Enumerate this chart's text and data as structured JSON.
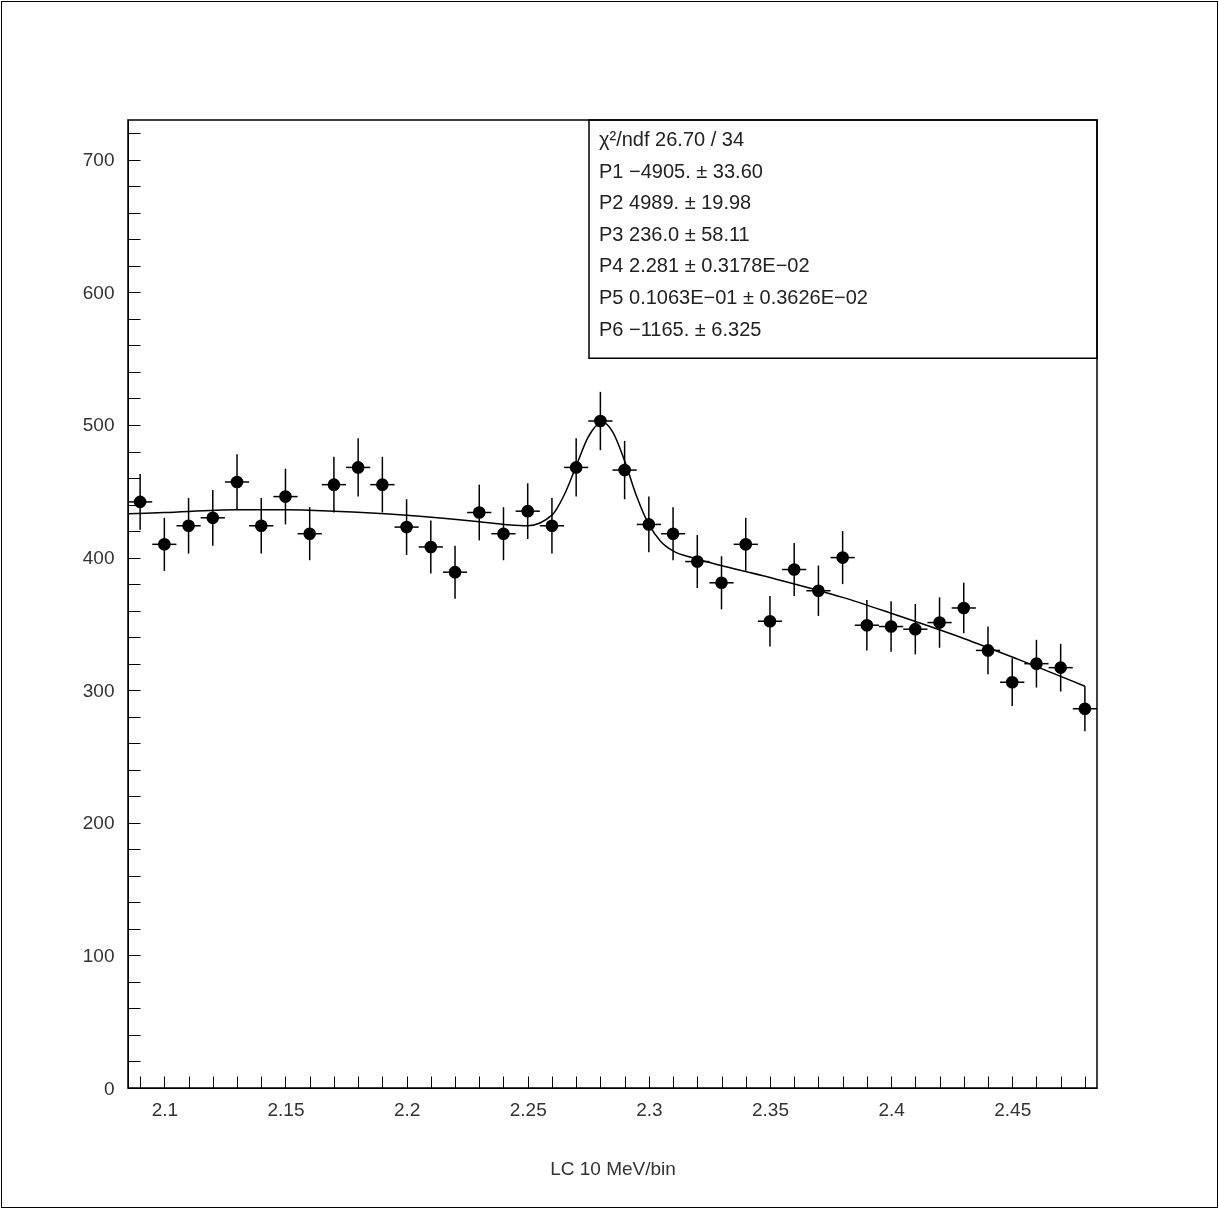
{
  "chart_data": {
    "type": "scatter",
    "xlabel": "LC 10 MeV/bin",
    "x": [
      2.09,
      2.1,
      2.11,
      2.12,
      2.13,
      2.14,
      2.15,
      2.16,
      2.17,
      2.18,
      2.19,
      2.2,
      2.21,
      2.22,
      2.23,
      2.24,
      2.25,
      2.26,
      2.27,
      2.28,
      2.29,
      2.3,
      2.31,
      2.32,
      2.33,
      2.34,
      2.35,
      2.36,
      2.37,
      2.38,
      2.39,
      2.4,
      2.41,
      2.42,
      2.43,
      2.44,
      2.45,
      2.46,
      2.47,
      2.48
    ],
    "series": [
      {
        "color": "#000000",
        "marker": "circle",
        "values": [
          442,
          410,
          424,
          430,
          457,
          424,
          446,
          418,
          455,
          468,
          455,
          423,
          408,
          389,
          434,
          418,
          435,
          424,
          468,
          503,
          466,
          425,
          418,
          397,
          381,
          410,
          352,
          391,
          375,
          400,
          349,
          348,
          346,
          351,
          362,
          330,
          306,
          320,
          317,
          286
        ],
        "errors": [
          21,
          20,
          21,
          21,
          21,
          21,
          21,
          20,
          21,
          22,
          21,
          21,
          20,
          20,
          21,
          20,
          21,
          21,
          22,
          22,
          22,
          21,
          20,
          20,
          20,
          20,
          19,
          20,
          19,
          20,
          19,
          19,
          19,
          19,
          19,
          18,
          18,
          18,
          18,
          17
        ],
        "xerrors": [
          0.005,
          0.005,
          0.005,
          0.005,
          0.005,
          0.005,
          0.005,
          0.005,
          0.005,
          0.005,
          0.005,
          0.005,
          0.005,
          0.005,
          0.005,
          0.005,
          0.005,
          0.005,
          0.005,
          0.005,
          0.005,
          0.005,
          0.005,
          0.005,
          0.005,
          0.005,
          0.005,
          0.005,
          0.005,
          0.005,
          0.005,
          0.005,
          0.005,
          0.005,
          0.005,
          0.005,
          0.005,
          0.005,
          0.005,
          0.005
        ]
      },
      {
        "type": "line",
        "color": "#000000",
        "marker": "none",
        "line_style": "solid",
        "x": [
          2.085,
          2.1,
          2.13,
          2.15,
          2.17,
          2.2,
          2.23,
          2.24,
          2.25,
          2.26,
          2.265,
          2.27,
          2.275,
          2.281,
          2.285,
          2.29,
          2.295,
          2.3,
          2.305,
          2.31,
          2.32,
          2.35,
          2.38,
          2.4,
          2.43,
          2.45,
          2.48
        ],
        "values": [
          433,
          434,
          436,
          436,
          435,
          432,
          427,
          425,
          424,
          432,
          447,
          469,
          491,
          502,
          495,
          473,
          446,
          425,
          412,
          405,
          399,
          385,
          370,
          358,
          339,
          325,
          303
        ]
      }
    ],
    "xlim": [
      2.085,
      2.485
    ],
    "ylim": [
      0,
      730
    ],
    "xticks": [
      {
        "value": 2.09,
        "label": null
      },
      2.1,
      {
        "value": 2.11,
        "label": null
      },
      {
        "value": 2.12,
        "label": null
      },
      {
        "value": 2.13,
        "label": null
      },
      {
        "value": 2.14,
        "label": null
      },
      2.15,
      {
        "value": 2.16,
        "label": null
      },
      {
        "value": 2.17,
        "label": null
      },
      {
        "value": 2.18,
        "label": null
      },
      {
        "value": 2.19,
        "label": null
      },
      2.2,
      {
        "value": 2.21,
        "label": null
      },
      {
        "value": 2.22,
        "label": null
      },
      {
        "value": 2.23,
        "label": null
      },
      {
        "value": 2.24,
        "label": null
      },
      2.25,
      {
        "value": 2.26,
        "label": null
      },
      {
        "value": 2.27,
        "label": null
      },
      {
        "value": 2.28,
        "label": null
      },
      {
        "value": 2.29,
        "label": null
      },
      2.3,
      {
        "value": 2.31,
        "label": null
      },
      {
        "value": 2.32,
        "label": null
      },
      {
        "value": 2.33,
        "label": null
      },
      {
        "value": 2.34,
        "label": null
      },
      2.35,
      {
        "value": 2.36,
        "label": null
      },
      {
        "value": 2.37,
        "label": null
      },
      {
        "value": 2.38,
        "label": null
      },
      {
        "value": 2.39,
        "label": null
      },
      2.4,
      {
        "value": 2.41,
        "label": null
      },
      {
        "value": 2.42,
        "label": null
      },
      {
        "value": 2.43,
        "label": null
      },
      {
        "value": 2.44,
        "label": null
      },
      2.45,
      {
        "value": 2.46,
        "label": null
      },
      {
        "value": 2.47,
        "label": null
      },
      {
        "value": 2.48,
        "label": null
      }
    ],
    "yticks": [
      0,
      {
        "value": 20,
        "label": null
      },
      {
        "value": 40,
        "label": null
      },
      {
        "value": 60,
        "label": null
      },
      {
        "value": 80,
        "label": null
      },
      100,
      {
        "value": 120,
        "label": null
      },
      {
        "value": 140,
        "label": null
      },
      {
        "value": 160,
        "label": null
      },
      {
        "value": 180,
        "label": null
      },
      200,
      {
        "value": 220,
        "label": null
      },
      {
        "value": 240,
        "label": null
      },
      {
        "value": 260,
        "label": null
      },
      {
        "value": 280,
        "label": null
      },
      300,
      {
        "value": 320,
        "label": null
      },
      {
        "value": 340,
        "label": null
      },
      {
        "value": 360,
        "label": null
      },
      {
        "value": 380,
        "label": null
      },
      400,
      {
        "value": 420,
        "label": null
      },
      {
        "value": 440,
        "label": null
      },
      {
        "value": 460,
        "label": null
      },
      {
        "value": 480,
        "label": null
      },
      500,
      {
        "value": 520,
        "label": null
      },
      {
        "value": 540,
        "label": null
      },
      {
        "value": 560,
        "label": null
      },
      {
        "value": 580,
        "label": null
      },
      600,
      {
        "value": 620,
        "label": null
      },
      {
        "value": 640,
        "label": null
      },
      {
        "value": 660,
        "label": null
      },
      {
        "value": 680,
        "label": null
      },
      700,
      {
        "value": 720,
        "label": null
      }
    ],
    "grid": false,
    "annotations": [
      "χ²/ndf 26.70  /  34",
      "P1   −4905. ±   33.60",
      "P2   4989. ±   19.98",
      "P3   236.0 ±   58.11",
      "P4   2.281 ± 0.3178E−02",
      "P5   0.1063E−01 ± 0.3626E−02",
      "P6   −1165. ±   6.325"
    ]
  }
}
